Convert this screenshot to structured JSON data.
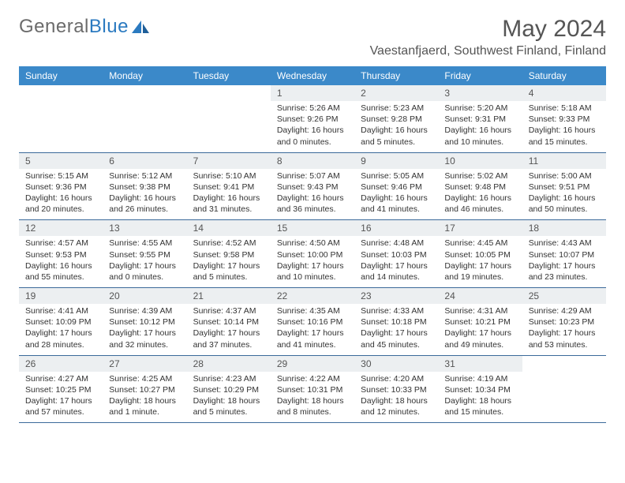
{
  "brand": {
    "part1": "General",
    "part2": "Blue"
  },
  "title": "May 2024",
  "location": "Vaestanfjaerd, Southwest Finland, Finland",
  "days_of_week": [
    "Sunday",
    "Monday",
    "Tuesday",
    "Wednesday",
    "Thursday",
    "Friday",
    "Saturday"
  ],
  "colors": {
    "header_bg": "#3b89c9",
    "header_text": "#ffffff",
    "daynum_bg": "#eceff1",
    "border": "#3b6a9a",
    "text": "#333333",
    "title_text": "#555555"
  },
  "weeks": [
    [
      {
        "n": "",
        "sr": "",
        "ss": "",
        "dl": ""
      },
      {
        "n": "",
        "sr": "",
        "ss": "",
        "dl": ""
      },
      {
        "n": "",
        "sr": "",
        "ss": "",
        "dl": ""
      },
      {
        "n": "1",
        "sr": "Sunrise: 5:26 AM",
        "ss": "Sunset: 9:26 PM",
        "dl": "Daylight: 16 hours and 0 minutes."
      },
      {
        "n": "2",
        "sr": "Sunrise: 5:23 AM",
        "ss": "Sunset: 9:28 PM",
        "dl": "Daylight: 16 hours and 5 minutes."
      },
      {
        "n": "3",
        "sr": "Sunrise: 5:20 AM",
        "ss": "Sunset: 9:31 PM",
        "dl": "Daylight: 16 hours and 10 minutes."
      },
      {
        "n": "4",
        "sr": "Sunrise: 5:18 AM",
        "ss": "Sunset: 9:33 PM",
        "dl": "Daylight: 16 hours and 15 minutes."
      }
    ],
    [
      {
        "n": "5",
        "sr": "Sunrise: 5:15 AM",
        "ss": "Sunset: 9:36 PM",
        "dl": "Daylight: 16 hours and 20 minutes."
      },
      {
        "n": "6",
        "sr": "Sunrise: 5:12 AM",
        "ss": "Sunset: 9:38 PM",
        "dl": "Daylight: 16 hours and 26 minutes."
      },
      {
        "n": "7",
        "sr": "Sunrise: 5:10 AM",
        "ss": "Sunset: 9:41 PM",
        "dl": "Daylight: 16 hours and 31 minutes."
      },
      {
        "n": "8",
        "sr": "Sunrise: 5:07 AM",
        "ss": "Sunset: 9:43 PM",
        "dl": "Daylight: 16 hours and 36 minutes."
      },
      {
        "n": "9",
        "sr": "Sunrise: 5:05 AM",
        "ss": "Sunset: 9:46 PM",
        "dl": "Daylight: 16 hours and 41 minutes."
      },
      {
        "n": "10",
        "sr": "Sunrise: 5:02 AM",
        "ss": "Sunset: 9:48 PM",
        "dl": "Daylight: 16 hours and 46 minutes."
      },
      {
        "n": "11",
        "sr": "Sunrise: 5:00 AM",
        "ss": "Sunset: 9:51 PM",
        "dl": "Daylight: 16 hours and 50 minutes."
      }
    ],
    [
      {
        "n": "12",
        "sr": "Sunrise: 4:57 AM",
        "ss": "Sunset: 9:53 PM",
        "dl": "Daylight: 16 hours and 55 minutes."
      },
      {
        "n": "13",
        "sr": "Sunrise: 4:55 AM",
        "ss": "Sunset: 9:55 PM",
        "dl": "Daylight: 17 hours and 0 minutes."
      },
      {
        "n": "14",
        "sr": "Sunrise: 4:52 AM",
        "ss": "Sunset: 9:58 PM",
        "dl": "Daylight: 17 hours and 5 minutes."
      },
      {
        "n": "15",
        "sr": "Sunrise: 4:50 AM",
        "ss": "Sunset: 10:00 PM",
        "dl": "Daylight: 17 hours and 10 minutes."
      },
      {
        "n": "16",
        "sr": "Sunrise: 4:48 AM",
        "ss": "Sunset: 10:03 PM",
        "dl": "Daylight: 17 hours and 14 minutes."
      },
      {
        "n": "17",
        "sr": "Sunrise: 4:45 AM",
        "ss": "Sunset: 10:05 PM",
        "dl": "Daylight: 17 hours and 19 minutes."
      },
      {
        "n": "18",
        "sr": "Sunrise: 4:43 AM",
        "ss": "Sunset: 10:07 PM",
        "dl": "Daylight: 17 hours and 23 minutes."
      }
    ],
    [
      {
        "n": "19",
        "sr": "Sunrise: 4:41 AM",
        "ss": "Sunset: 10:09 PM",
        "dl": "Daylight: 17 hours and 28 minutes."
      },
      {
        "n": "20",
        "sr": "Sunrise: 4:39 AM",
        "ss": "Sunset: 10:12 PM",
        "dl": "Daylight: 17 hours and 32 minutes."
      },
      {
        "n": "21",
        "sr": "Sunrise: 4:37 AM",
        "ss": "Sunset: 10:14 PM",
        "dl": "Daylight: 17 hours and 37 minutes."
      },
      {
        "n": "22",
        "sr": "Sunrise: 4:35 AM",
        "ss": "Sunset: 10:16 PM",
        "dl": "Daylight: 17 hours and 41 minutes."
      },
      {
        "n": "23",
        "sr": "Sunrise: 4:33 AM",
        "ss": "Sunset: 10:18 PM",
        "dl": "Daylight: 17 hours and 45 minutes."
      },
      {
        "n": "24",
        "sr": "Sunrise: 4:31 AM",
        "ss": "Sunset: 10:21 PM",
        "dl": "Daylight: 17 hours and 49 minutes."
      },
      {
        "n": "25",
        "sr": "Sunrise: 4:29 AM",
        "ss": "Sunset: 10:23 PM",
        "dl": "Daylight: 17 hours and 53 minutes."
      }
    ],
    [
      {
        "n": "26",
        "sr": "Sunrise: 4:27 AM",
        "ss": "Sunset: 10:25 PM",
        "dl": "Daylight: 17 hours and 57 minutes."
      },
      {
        "n": "27",
        "sr": "Sunrise: 4:25 AM",
        "ss": "Sunset: 10:27 PM",
        "dl": "Daylight: 18 hours and 1 minute."
      },
      {
        "n": "28",
        "sr": "Sunrise: 4:23 AM",
        "ss": "Sunset: 10:29 PM",
        "dl": "Daylight: 18 hours and 5 minutes."
      },
      {
        "n": "29",
        "sr": "Sunrise: 4:22 AM",
        "ss": "Sunset: 10:31 PM",
        "dl": "Daylight: 18 hours and 8 minutes."
      },
      {
        "n": "30",
        "sr": "Sunrise: 4:20 AM",
        "ss": "Sunset: 10:33 PM",
        "dl": "Daylight: 18 hours and 12 minutes."
      },
      {
        "n": "31",
        "sr": "Sunrise: 4:19 AM",
        "ss": "Sunset: 10:34 PM",
        "dl": "Daylight: 18 hours and 15 minutes."
      },
      {
        "n": "",
        "sr": "",
        "ss": "",
        "dl": ""
      }
    ]
  ]
}
